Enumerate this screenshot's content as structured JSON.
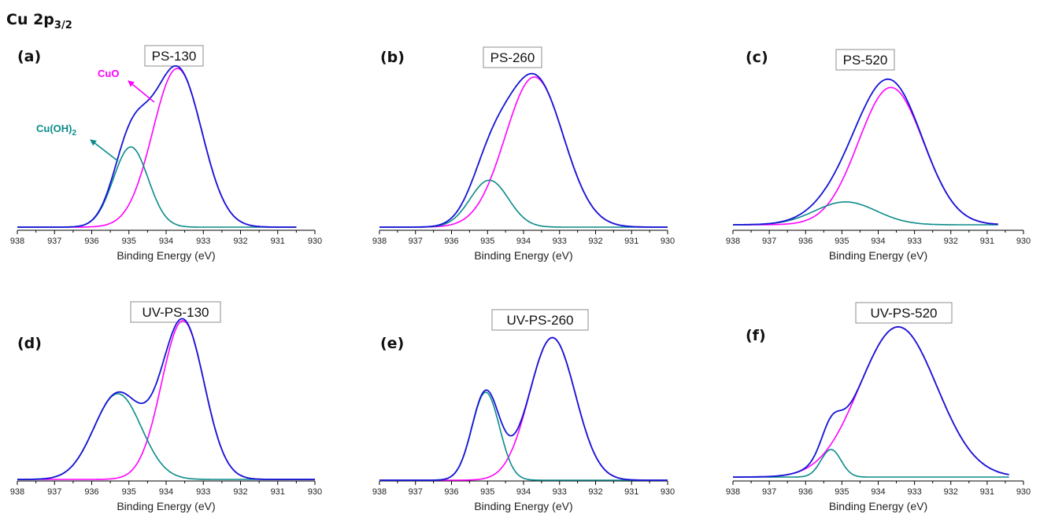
{
  "figure_title": {
    "main": "Cu 2p",
    "sub": "3/2"
  },
  "colors": {
    "envelope": "#1414d6",
    "cuo": "#ff00ff",
    "cuoh2": "#0b8a8a",
    "axis": "#000000"
  },
  "annotations": {
    "cuo": "CuO",
    "cuoh2_main": "Cu(OH)",
    "cuoh2_sub": "2"
  },
  "chart_data": [
    {
      "type": "line",
      "panel": "(a)",
      "title": "PS-130",
      "xlabel": "Binding Energy (eV)",
      "xlim": [
        938,
        930
      ],
      "xreversed": true,
      "xticks": [
        938,
        937,
        936,
        935,
        934,
        933,
        932,
        931,
        930
      ],
      "x_range": [
        938.0,
        930.5
      ],
      "series": [
        {
          "name": "CuO",
          "role": "component",
          "center": 933.7,
          "fwhm": 1.55,
          "height": 0.99
        },
        {
          "name": "Cu(OH)2",
          "role": "component",
          "center": 934.95,
          "fwhm": 1.1,
          "height": 0.5
        },
        {
          "name": "",
          "role": "envelope"
        }
      ]
    },
    {
      "type": "line",
      "panel": "(b)",
      "title": "PS-260",
      "xlabel": "Binding Energy (eV)",
      "xlim": [
        938,
        930
      ],
      "xreversed": true,
      "xticks": [
        938,
        937,
        936,
        935,
        934,
        933,
        932,
        931,
        930
      ],
      "x_range": [
        938.0,
        930.0
      ],
      "series": [
        {
          "name": "CuO",
          "role": "component",
          "center": 933.7,
          "fwhm": 1.9,
          "height": 0.96
        },
        {
          "name": "Cu(OH)2",
          "role": "component",
          "center": 934.95,
          "fwhm": 1.25,
          "height": 0.3
        },
        {
          "name": "",
          "role": "envelope"
        }
      ]
    },
    {
      "type": "line",
      "panel": "(c)",
      "title": "PS-520",
      "xlabel": "Binding Energy (eV)",
      "xlim": [
        938,
        930
      ],
      "xreversed": true,
      "xticks": [
        938,
        937,
        936,
        935,
        934,
        933,
        932,
        931,
        930
      ],
      "x_range": [
        938.0,
        930.7
      ],
      "series": [
        {
          "name": "CuO",
          "role": "component",
          "center": 933.65,
          "fwhm": 2.1,
          "height": 0.96
        },
        {
          "name": "Cu(OH)2",
          "role": "component",
          "center": 934.9,
          "fwhm": 2.0,
          "height": 0.16
        },
        {
          "name": "",
          "role": "envelope"
        }
      ]
    },
    {
      "type": "line",
      "panel": "(d)",
      "title": "UV-PS-130",
      "xlabel": "Binding Energy (eV)",
      "xlim": [
        938,
        930
      ],
      "xreversed": true,
      "xticks": [
        938,
        937,
        936,
        935,
        934,
        933,
        932,
        931,
        930
      ],
      "x_range": [
        938.0,
        930.0
      ],
      "series": [
        {
          "name": "CuO",
          "role": "component",
          "center": 933.55,
          "fwhm": 1.35,
          "height": 1.0
        },
        {
          "name": "Cu(OH)2",
          "role": "component",
          "center": 935.3,
          "fwhm": 1.5,
          "height": 0.54
        },
        {
          "name": "",
          "role": "envelope"
        }
      ]
    },
    {
      "type": "line",
      "panel": "(e)",
      "title": "UV-PS-260",
      "xlabel": "Binding Energy (eV)",
      "xlim": [
        938,
        930
      ],
      "xreversed": true,
      "xticks": [
        938,
        937,
        936,
        935,
        934,
        933,
        932,
        931,
        930
      ],
      "x_range": [
        938.0,
        930.0
      ],
      "series": [
        {
          "name": "CuO",
          "role": "component",
          "center": 933.2,
          "fwhm": 1.5,
          "height": 0.94
        },
        {
          "name": "Cu(OH)2",
          "role": "component",
          "center": 935.05,
          "fwhm": 0.9,
          "height": 0.58
        },
        {
          "name": "",
          "role": "envelope"
        }
      ]
    },
    {
      "type": "line",
      "panel": "(f)",
      "title": "UV-PS-520",
      "xlabel": "Binding Energy (eV)",
      "xlim": [
        938,
        930
      ],
      "xreversed": true,
      "xticks": [
        938,
        937,
        936,
        935,
        934,
        933,
        932,
        931,
        930
      ],
      "x_range": [
        938.0,
        930.4
      ],
      "series": [
        {
          "name": "CuO",
          "role": "component",
          "center": 933.45,
          "fwhm": 2.5,
          "height": 0.98
        },
        {
          "name": "Cu(OH)2",
          "role": "component",
          "center": 935.3,
          "fwhm": 0.65,
          "height": 0.18
        },
        {
          "name": "",
          "role": "envelope"
        }
      ]
    }
  ]
}
